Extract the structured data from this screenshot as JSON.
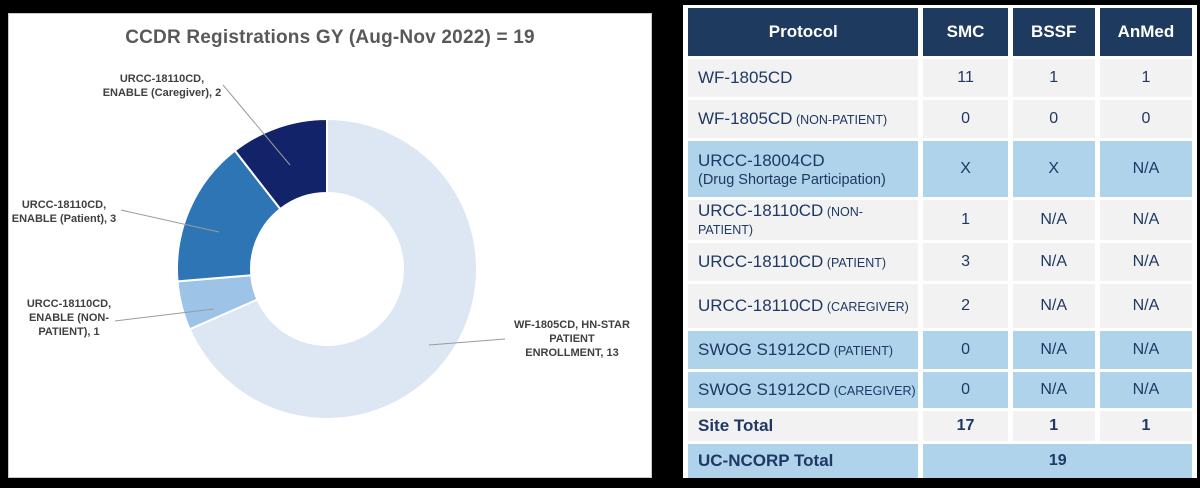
{
  "colors": {
    "canvas_bg": "#000000",
    "panel_bg": "#ffffff",
    "panel_border": "#c8c8c8",
    "title_text": "#595959",
    "donut_label_text": "#404040",
    "leader_line": "#9b9b9b",
    "table_header_bg": "#1e3a5f",
    "table_header_text": "#ffffff",
    "row_gray_bg": "#f2f2f2",
    "row_blue_bg": "#aed3ea",
    "table_text": "#1f3864"
  },
  "chart_data": {
    "type": "pie",
    "subtype": "donut",
    "title": "CCDR Registrations GY (Aug-Nov 2022) = 19",
    "total": 19,
    "hole_ratio": 0.5,
    "legend_position": "none",
    "segments": [
      {
        "name": "WF-1805CD, HN-STAR PATIENT ENROLLMENT",
        "value": 13,
        "color": "#dde6f3",
        "label": "WF-1805CD, HN-STAR\nPATIENT\nENROLLMENT, 13"
      },
      {
        "name": "URCC-18110CD, ENABLE (NON-PATIENT)",
        "value": 1,
        "color": "#9dc3e6",
        "label": "URCC-18110CD,\nENABLE (NON-\nPATIENT), 1"
      },
      {
        "name": "URCC-18110CD, ENABLE (Patient)",
        "value": 3,
        "color": "#2e75b6",
        "label": "URCC-18110CD,\nENABLE (Patient), 3"
      },
      {
        "name": "URCC-18110CD, ENABLE (Caregiver)",
        "value": 2,
        "color": "#122369",
        "label": "URCC-18110CD,\nENABLE (Caregiver), 2"
      }
    ]
  },
  "table": {
    "columns": [
      "Protocol",
      "SMC",
      "BSSF",
      "AnMed"
    ],
    "rows": [
      {
        "protocol": "WF-1805CD",
        "suffix": "",
        "values": [
          "11",
          "1",
          "1"
        ],
        "style": "gray",
        "bold": false
      },
      {
        "protocol": "WF-1805CD",
        "suffix": "(NON-PATIENT)",
        "values": [
          "0",
          "0",
          "0"
        ],
        "style": "gray",
        "bold": false
      },
      {
        "protocol": "URCC-18004CD",
        "subline": "(Drug Shortage Participation)",
        "values": [
          "X",
          "X",
          "N/A"
        ],
        "style": "blue",
        "bold": false
      },
      {
        "protocol": "URCC-18110CD",
        "suffix": "(NON-PATIENT)",
        "values": [
          "1",
          "N/A",
          "N/A"
        ],
        "style": "gray",
        "bold": false
      },
      {
        "protocol": "URCC-18110CD",
        "suffix": "(PATIENT)",
        "values": [
          "3",
          "N/A",
          "N/A"
        ],
        "style": "gray",
        "bold": false
      },
      {
        "protocol": "URCC-18110CD",
        "suffix": "(CAREGIVER)",
        "values": [
          "2",
          "N/A",
          "N/A"
        ],
        "style": "gray",
        "bold": false
      },
      {
        "protocol": "SWOG S1912CD",
        "suffix": "(PATIENT)",
        "values": [
          "0",
          "N/A",
          "N/A"
        ],
        "style": "blue",
        "bold": false
      },
      {
        "protocol": "SWOG S1912CD",
        "suffix": "(CAREGIVER)",
        "values": [
          "0",
          "N/A",
          "N/A"
        ],
        "style": "blue",
        "bold": false
      },
      {
        "protocol": "Site Total",
        "suffix": "",
        "values": [
          "17",
          "1",
          "1"
        ],
        "style": "gray",
        "bold": true
      },
      {
        "protocol": "UC-NCORP Total",
        "merged": "19",
        "style": "blue",
        "bold": true
      }
    ]
  }
}
